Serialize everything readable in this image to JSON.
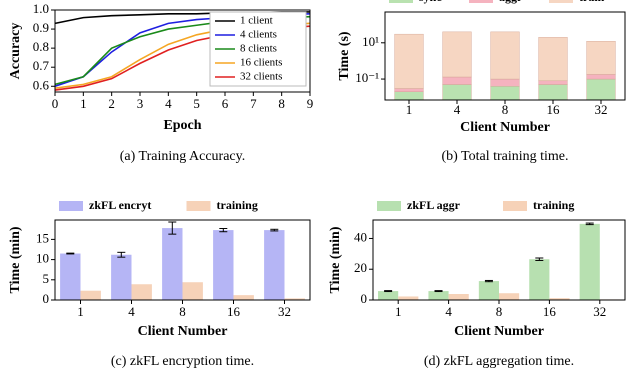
{
  "chart_data": [
    {
      "type": "line",
      "caption": "(a) Training Accuracy.",
      "x_label": "Epoch",
      "y_label": "Accuracy",
      "x": [
        0,
        1,
        2,
        3,
        4,
        5,
        6,
        7,
        8,
        9
      ],
      "series": [
        {
          "name": "1 client",
          "color": "#000000",
          "values": [
            0.93,
            0.96,
            0.97,
            0.975,
            0.98,
            0.98,
            0.985,
            0.985,
            0.99,
            0.99
          ]
        },
        {
          "name": "4 clients",
          "color": "#1f1fe0",
          "values": [
            0.6,
            0.65,
            0.78,
            0.88,
            0.93,
            0.95,
            0.96,
            0.97,
            0.975,
            0.98
          ]
        },
        {
          "name": "8 clients",
          "color": "#1a8a1a",
          "values": [
            0.61,
            0.65,
            0.8,
            0.86,
            0.9,
            0.92,
            0.94,
            0.95,
            0.96,
            0.965
          ]
        },
        {
          "name": "16 clients",
          "color": "#f5a623",
          "values": [
            0.59,
            0.61,
            0.65,
            0.74,
            0.82,
            0.87,
            0.9,
            0.91,
            0.92,
            0.93
          ]
        },
        {
          "name": "32 clients",
          "color": "#e02020",
          "values": [
            0.58,
            0.6,
            0.64,
            0.72,
            0.79,
            0.84,
            0.87,
            0.89,
            0.905,
            0.915
          ]
        }
      ],
      "xlim": [
        0,
        9
      ],
      "xticks": [
        0,
        1,
        2,
        3,
        4,
        5,
        6,
        7,
        8,
        9
      ],
      "ylim": [
        0.57,
        1.0
      ],
      "yticks": [
        0.6,
        0.7,
        0.8,
        0.9,
        {
          "value": 1,
          "label": "1.0"
        }
      ],
      "legend": "upper right"
    },
    {
      "type": "bar",
      "stacked": true,
      "log_scale": true,
      "caption": "(b) Total training time.",
      "x_label": "Client Number",
      "y_label": "Time (s)",
      "categories": [
        "1",
        "4",
        "8",
        "16",
        "32"
      ],
      "series": [
        {
          "name": "sync",
          "color": "#b9e2b0",
          "values": [
            0.02,
            0.05,
            0.04,
            0.05,
            0.1
          ]
        },
        {
          "name": "aggr",
          "color": "#f5b3bf",
          "values": [
            0.01,
            0.08,
            0.06,
            0.03,
            0.08
          ]
        },
        {
          "name": "train",
          "color": "#f6d6c2",
          "values": [
            30,
            40,
            40,
            20,
            12
          ]
        }
      ],
      "ylim": [
        0.007,
        500
      ],
      "yticks": [
        {
          "value": 0.1,
          "label": "10⁻¹"
        },
        {
          "value": 10,
          "label": "10¹"
        }
      ],
      "legend": "top"
    },
    {
      "type": "bar",
      "caption": "(c) zkFL encryption time.",
      "x_label": "Client Number",
      "y_label": "Time (min)",
      "categories": [
        "1",
        "4",
        "8",
        "16",
        "32"
      ],
      "series": [
        {
          "name": "zkFL encryt",
          "color": "#b5b5f5",
          "values": [
            11.5,
            11.2,
            17.8,
            17.3,
            17.3
          ],
          "errors": [
            0.1,
            0.6,
            1.5,
            0.4,
            0.2
          ]
        },
        {
          "name": "training",
          "color": "#f6d2b8",
          "values": [
            2.3,
            3.9,
            4.4,
            1.2,
            0.4
          ]
        }
      ],
      "ylim": [
        0,
        19.8
      ],
      "yticks": [
        0,
        5,
        10,
        15
      ],
      "legend": "top"
    },
    {
      "type": "bar",
      "caption": "(d) zkFL aggregation time.",
      "x_label": "Client Number",
      "y_label": "Time (min)",
      "categories": [
        "1",
        "4",
        "8",
        "16",
        "32"
      ],
      "series": [
        {
          "name": "zkFL aggr",
          "color": "#b7e0b0",
          "values": [
            5.8,
            5.8,
            12.3,
            26.5,
            49.5
          ],
          "errors": [
            0.3,
            0.3,
            0.4,
            0.8,
            0.5
          ]
        },
        {
          "name": "training",
          "color": "#f6d2b8",
          "values": [
            2.3,
            3.9,
            4.4,
            1.2,
            0.4
          ]
        }
      ],
      "ylim": [
        0,
        52
      ],
      "yticks": [
        0,
        20,
        40
      ],
      "legend": "top"
    }
  ]
}
